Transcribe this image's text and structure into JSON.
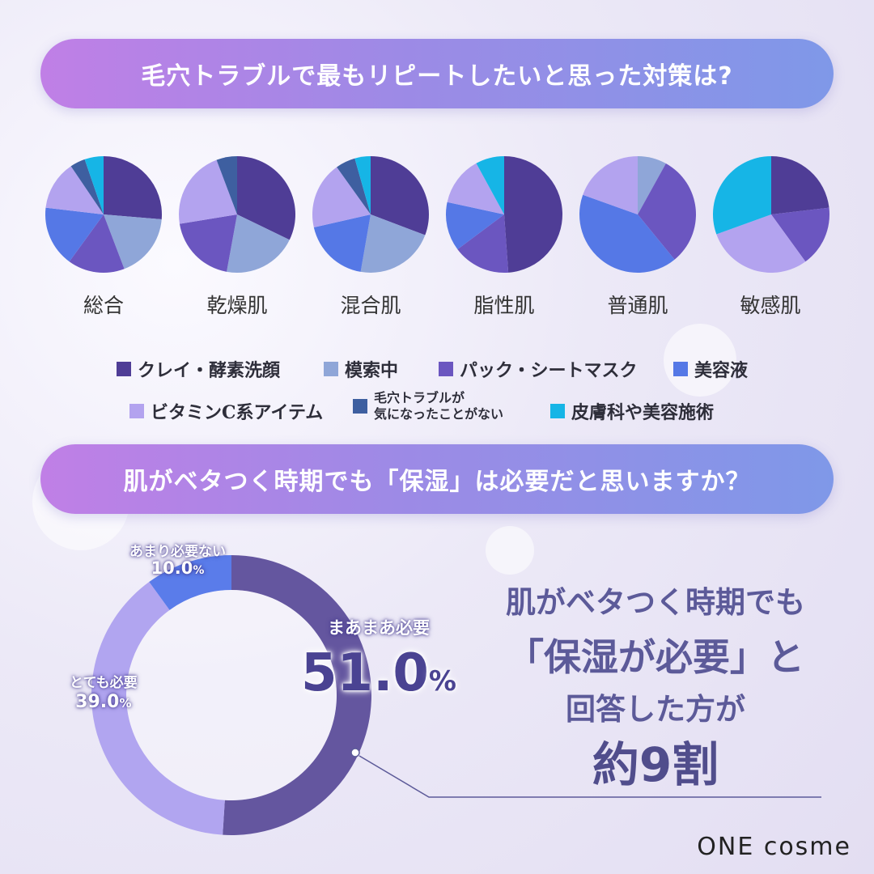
{
  "title1": "毛穴トラブルで最もリピートしたいと思った対策は?",
  "title2": "肌がベタつく時期でも「保湿」は必要だと思いますか？",
  "chart_data": [
    {
      "type": "pie",
      "title": "毛穴トラブルで最もリピートしたいと思った対策は?",
      "categories": [
        "クレイ・酵素洗顔",
        "模索中",
        "パック・シートマスク",
        "美容液",
        "ビタミンC系アイテム",
        "毛穴トラブルが気になったことがない",
        "皮膚科や美容施術"
      ],
      "colors": [
        "#4f3d96",
        "#8fa6d8",
        "#6b56c0",
        "#5578e6",
        "#b3a3ef",
        "#3e5fa0",
        "#16b5e6"
      ],
      "series": [
        {
          "name": "総合",
          "values": [
            25,
            17,
            15,
            16,
            13,
            4,
            5
          ]
        },
        {
          "name": "乾燥肌",
          "values": [
            28,
            18,
            17,
            0,
            19,
            5,
            0
          ]
        },
        {
          "name": "混合肌",
          "values": [
            28,
            20,
            0,
            17,
            17,
            5,
            4
          ]
        },
        {
          "name": "脂性肌",
          "values": [
            43,
            0,
            14,
            12,
            12,
            0,
            7
          ]
        },
        {
          "name": "普通肌",
          "values": [
            0,
            7,
            27,
            36,
            17,
            0,
            0
          ]
        },
        {
          "name": "敏感肌",
          "values": [
            22,
            0,
            16,
            0,
            28,
            0,
            29
          ]
        }
      ]
    },
    {
      "type": "pie",
      "title": "肌がベタつく時期でも「保湿」は必要だと思いますか？",
      "categories": [
        "まあまあ必要",
        "とても必要",
        "あまり必要ない"
      ],
      "values": [
        51.0,
        39.0,
        10.0
      ],
      "colors": [
        "#64569f",
        "#b1a5f0",
        "#5a7cea"
      ]
    }
  ],
  "pie_names": [
    "総合",
    "乾燥肌",
    "混合肌",
    "脂性肌",
    "普通肌",
    "敏感肌"
  ],
  "legend": [
    {
      "label": "クレイ・酵素洗顔",
      "color": "#4f3d96"
    },
    {
      "label": "模索中",
      "color": "#8fa6d8"
    },
    {
      "label": "パック・シートマスク",
      "color": "#6b56c0"
    },
    {
      "label": "美容液",
      "color": "#5578e6"
    },
    {
      "label": "ビタミンC系アイテム",
      "color": "#b3a3ef"
    },
    {
      "label": "毛穴トラブルが",
      "label2": "気になったことがない",
      "color": "#3e5fa0"
    },
    {
      "label": "皮膚科や美容施術",
      "color": "#16b5e6"
    }
  ],
  "donut_labels": {
    "maamaa": "まあまあ必要",
    "maamaa_pct": "51.0",
    "totemo": "とても必要",
    "totemo_pct": "39.0",
    "amari": "あまり必要ない",
    "amari_pct": "10.0",
    "pct_sign": "%"
  },
  "summary": {
    "line1": "肌がベタつく時期でも",
    "line2": "「保湿が必要」と",
    "line3": "回答した方が",
    "line4": "約9割"
  },
  "logo": "ONE cosme"
}
